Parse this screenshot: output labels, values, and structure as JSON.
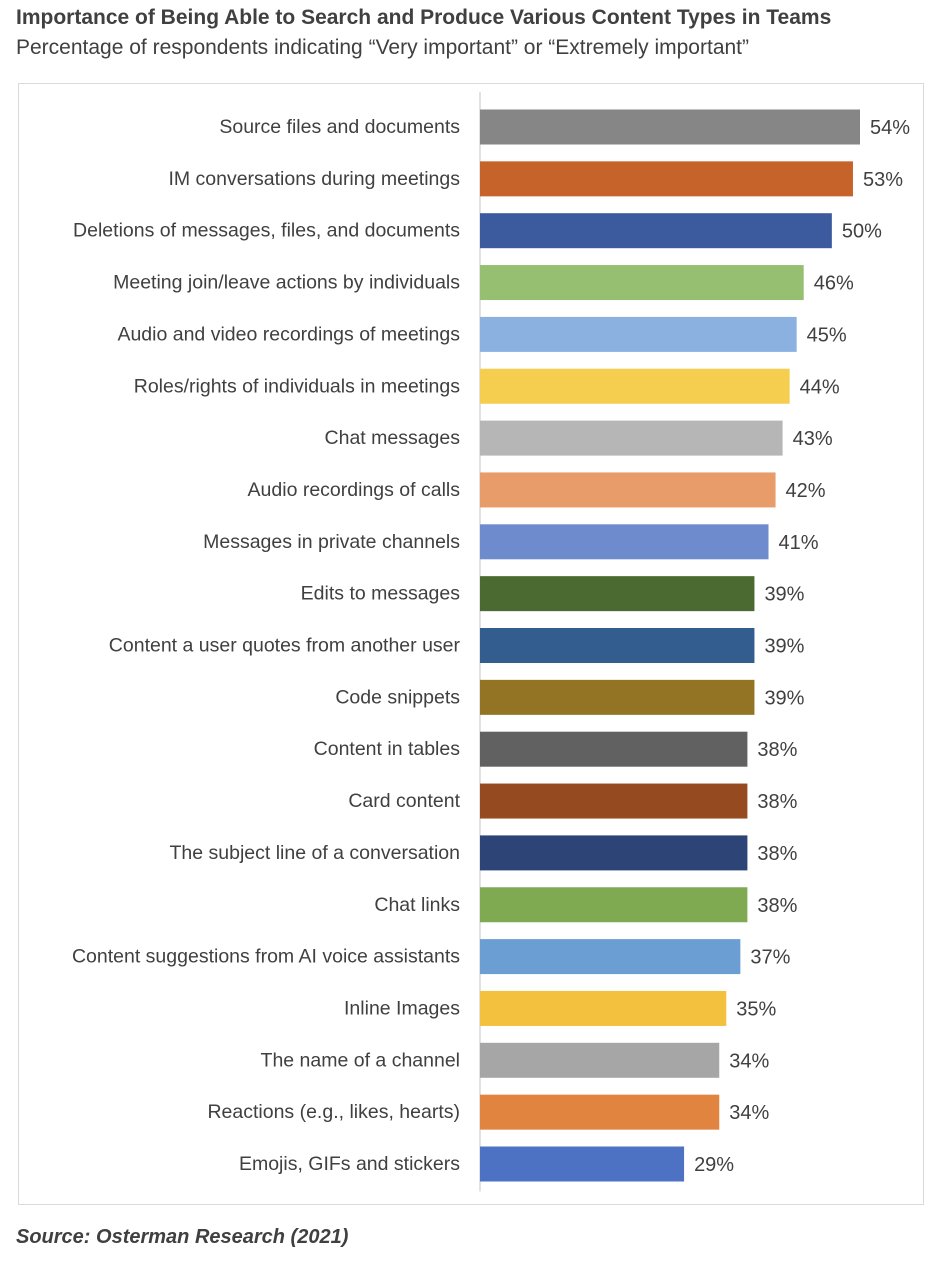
{
  "header": {
    "title": "Importance of Being Able to Search and Produce Various Content Types in Teams",
    "subtitle": "Percentage of respondents indicating “Very important” or “Extremely important”"
  },
  "footer": {
    "source": "Source: Osterman Research (2021)"
  },
  "chart_data": {
    "type": "bar",
    "orientation": "horizontal",
    "title": "Importance of Being Able to Search and Produce Various Content Types in Teams",
    "subtitle": "Percentage of respondents indicating “Very important” or “Extremely important”",
    "xlabel": "",
    "ylabel": "",
    "xlim": [
      0,
      54
    ],
    "grid": false,
    "legend": "none",
    "value_suffix": "%",
    "categories": [
      "Source files and documents",
      "IM conversations during meetings",
      "Deletions of messages, files, and documents",
      "Meeting join/leave actions by individuals",
      "Audio and video recordings of meetings",
      "Roles/rights of individuals in meetings",
      "Chat messages",
      "Audio recordings of calls",
      "Messages in private channels",
      "Edits to messages",
      "Content a user quotes from another user",
      "Code snippets",
      "Content in tables",
      "Card content",
      "The subject line of a conversation",
      "Chat links",
      "Content suggestions from AI voice assistants",
      "Inline Images",
      "The name of a channel",
      "Reactions (e.g., likes, hearts)",
      "Emojis, GIFs and stickers"
    ],
    "values": [
      54,
      53,
      50,
      46,
      45,
      44,
      43,
      42,
      41,
      39,
      39,
      39,
      38,
      38,
      38,
      38,
      37,
      35,
      34,
      34,
      29
    ],
    "value_labels": [
      "54%",
      "53%",
      "50%",
      "46%",
      "45%",
      "44%",
      "43%",
      "42%",
      "41%",
      "39%",
      "39%",
      "39%",
      "38%",
      "38%",
      "38%",
      "38%",
      "37%",
      "35%",
      "34%",
      "34%",
      "29%"
    ],
    "colors": [
      "#868686",
      "#c5632a",
      "#3c5a9e",
      "#97bf72",
      "#8ab1df",
      "#f5cd4f",
      "#b6b6b6",
      "#e79c69",
      "#6e8ccd",
      "#4b6a31",
      "#335d8e",
      "#927424",
      "#616161",
      "#964a1f",
      "#2c4576",
      "#7faa52",
      "#6b9fd4",
      "#f3c13e",
      "#a6a6a6",
      "#e0843f",
      "#4e72c3"
    ]
  }
}
